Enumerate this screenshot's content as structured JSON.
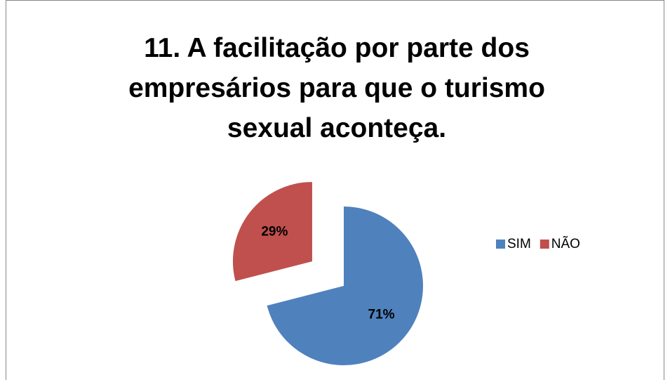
{
  "chart_data": {
    "type": "pie",
    "title": "11. A facilitação por parte dos empresários para que o turismo sexual aconteça.",
    "categories": [
      "SIM",
      "NÃO"
    ],
    "values": [
      71,
      29
    ],
    "value_labels": [
      "71%",
      "29%"
    ],
    "colors": [
      "#4f81bd",
      "#c0504d"
    ],
    "legend": "right"
  }
}
